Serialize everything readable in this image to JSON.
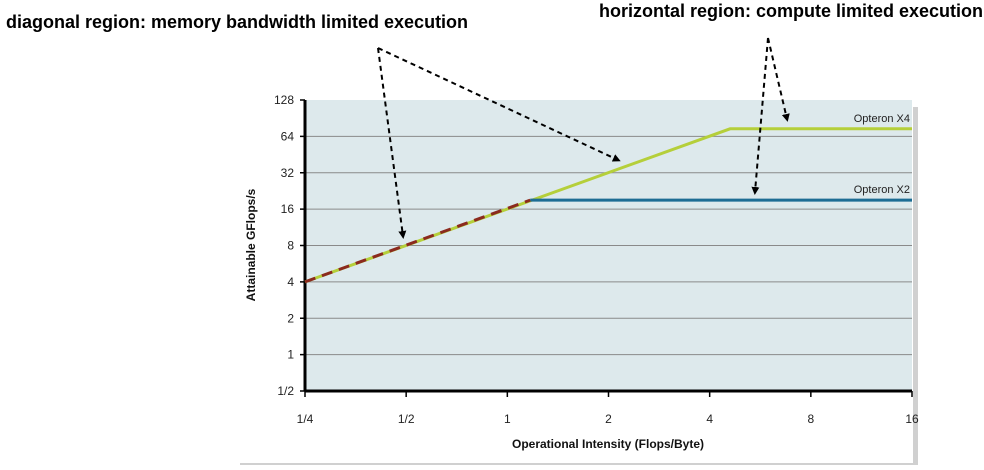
{
  "annotations": {
    "left": "diagonal region: memory bandwidth limited execution",
    "right": "horizontal region: compute limited execution"
  },
  "chart_data": {
    "type": "line",
    "xlabel": "Operational Intensity (Flops/Byte)",
    "ylabel": "Attainable GFlops/s",
    "x_scale": "log2",
    "y_scale": "log2",
    "xlim": [
      0.25,
      16
    ],
    "ylim": [
      0.5,
      128
    ],
    "x_ticks": [
      0.25,
      0.5,
      1,
      2,
      4,
      8,
      16
    ],
    "x_tick_labels": [
      "1/4",
      "1/2",
      "1",
      "2",
      "4",
      "8",
      "16"
    ],
    "y_ticks": [
      0.5,
      1,
      2,
      4,
      8,
      16,
      32,
      64,
      128
    ],
    "y_tick_labels": [
      "1/2",
      "1",
      "2",
      "4",
      "8",
      "16",
      "32",
      "64",
      "128"
    ],
    "grid": "horizontal",
    "background": "#dde9ec",
    "series": [
      {
        "name": "Opteron X4",
        "color": "#b5cf3a",
        "style": "solid",
        "points": [
          [
            0.25,
            4
          ],
          [
            4.6,
            74
          ],
          [
            16,
            74
          ]
        ]
      },
      {
        "name": "Opteron X2",
        "color": "#1d6d94",
        "style": "solid",
        "points": [
          [
            1.17,
            19
          ],
          [
            16,
            19
          ]
        ]
      },
      {
        "name": "",
        "color": "#8b2a1e",
        "style": "dashed",
        "points": [
          [
            0.25,
            4
          ],
          [
            1.17,
            19
          ]
        ]
      }
    ]
  }
}
